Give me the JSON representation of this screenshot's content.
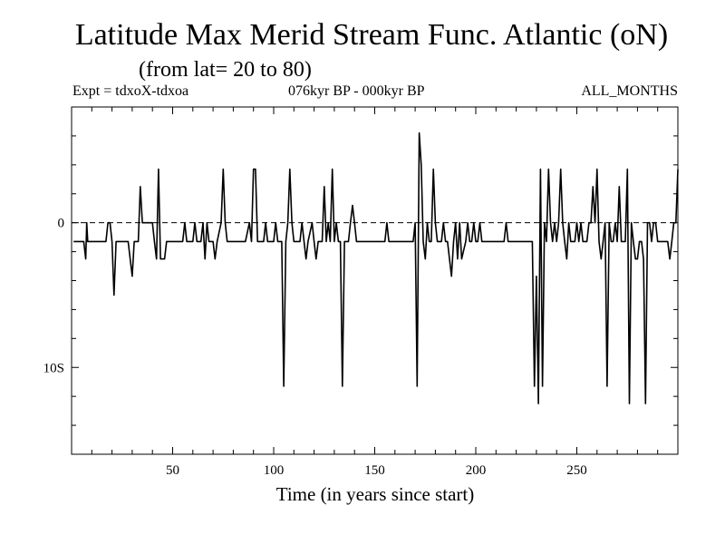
{
  "header": {
    "title": "Latitude Max Merid Stream Func. Atlantic (oN)",
    "subtitle": "(from lat= 20 to 80)",
    "expt": "Expt = tdxoX-tdxoa",
    "period": "076kyr BP - 000kyr BP",
    "months": "ALL_MONTHS"
  },
  "chart_data": {
    "type": "line",
    "title": "Latitude Max Merid Stream Func. Atlantic (oN)",
    "subtitle": "(from lat= 20 to 80)",
    "xlabel": "Time (in years since start)",
    "ylabel": "",
    "xlim": [
      0,
      300
    ],
    "ylim": [
      -16,
      8
    ],
    "x_ticks": [
      50,
      100,
      150,
      200,
      250
    ],
    "x_tick_labels": [
      "50",
      "100",
      "150",
      "200",
      "250"
    ],
    "y_ticks": [
      0,
      -10
    ],
    "y_tick_labels": [
      "0",
      "10S"
    ],
    "reference_line": 0,
    "grid": false,
    "series": [
      {
        "values": [
          [
            1,
            -1.3
          ],
          [
            6,
            -1.3
          ],
          [
            7,
            -2.5
          ],
          [
            7.5,
            0
          ],
          [
            8,
            -1.3
          ],
          [
            17,
            -1.3
          ],
          [
            18,
            0
          ],
          [
            19,
            0
          ],
          [
            20,
            -1.3
          ],
          [
            21,
            -5
          ],
          [
            22,
            -1.3
          ],
          [
            26,
            -1.3
          ],
          [
            28,
            -1.3
          ],
          [
            30,
            -3.7
          ],
          [
            31,
            -1.3
          ],
          [
            33,
            -1.3
          ],
          [
            34,
            2.5
          ],
          [
            35,
            0
          ],
          [
            40,
            0
          ],
          [
            41,
            -1.3
          ],
          [
            42,
            -2.5
          ],
          [
            43,
            3.7
          ],
          [
            44,
            -2.5
          ],
          [
            46,
            -2.5
          ],
          [
            47,
            -1.3
          ],
          [
            55,
            -1.3
          ],
          [
            56,
            0
          ],
          [
            57,
            -1.3
          ],
          [
            60,
            -1.3
          ],
          [
            61,
            0
          ],
          [
            62,
            -1.3
          ],
          [
            64,
            -1.3
          ],
          [
            65,
            0
          ],
          [
            66,
            -2.5
          ],
          [
            67,
            0
          ],
          [
            68,
            -1.3
          ],
          [
            70,
            -1.3
          ],
          [
            71,
            -2.5
          ],
          [
            72,
            -1.3
          ],
          [
            74,
            0
          ],
          [
            75,
            3.7
          ],
          [
            76,
            0
          ],
          [
            77,
            -1.3
          ],
          [
            86,
            -1.3
          ],
          [
            88,
            0
          ],
          [
            89,
            -1.3
          ],
          [
            90,
            3.7
          ],
          [
            91,
            3.7
          ],
          [
            92,
            -1.3
          ],
          [
            95,
            -1.3
          ],
          [
            96,
            0
          ],
          [
            97,
            -1.3
          ],
          [
            100,
            -1.3
          ],
          [
            101,
            0
          ],
          [
            102,
            -1.3
          ],
          [
            104,
            -1.3
          ],
          [
            105,
            -11.3
          ],
          [
            106,
            -1.3
          ],
          [
            107,
            0
          ],
          [
            108,
            3.7
          ],
          [
            109,
            0
          ],
          [
            110,
            -1.3
          ],
          [
            113,
            -1.3
          ],
          [
            114,
            0
          ],
          [
            115,
            -1.3
          ],
          [
            116,
            -2.5
          ],
          [
            117,
            -1.3
          ],
          [
            119,
            0
          ],
          [
            120,
            -1.3
          ],
          [
            121,
            -2.5
          ],
          [
            122,
            -1.3
          ],
          [
            124,
            -1.3
          ],
          [
            125,
            2.5
          ],
          [
            126,
            -1.3
          ],
          [
            127,
            0
          ],
          [
            128,
            -1.3
          ],
          [
            129,
            3.7
          ],
          [
            130,
            -1.3
          ],
          [
            131,
            0
          ],
          [
            132,
            -1.3
          ],
          [
            133,
            -1.3
          ],
          [
            134,
            -11.3
          ],
          [
            135,
            -1.3
          ],
          [
            137,
            -1.3
          ],
          [
            138,
            0
          ],
          [
            139,
            1.2
          ],
          [
            140,
            0
          ],
          [
            141,
            -1.3
          ],
          [
            150,
            -1.3
          ],
          [
            154,
            -1.3
          ],
          [
            155,
            -1.3
          ],
          [
            156,
            0
          ],
          [
            157,
            -1.3
          ],
          [
            158,
            -1.3
          ],
          [
            169,
            -1.3
          ],
          [
            170,
            0
          ],
          [
            171,
            -11.3
          ],
          [
            172,
            6.2
          ],
          [
            173,
            4
          ],
          [
            174,
            -1.3
          ],
          [
            175,
            -2.5
          ],
          [
            176,
            0
          ],
          [
            177,
            -1.3
          ],
          [
            178,
            -1.3
          ],
          [
            179,
            3.7
          ],
          [
            180,
            0
          ],
          [
            181,
            -1.3
          ],
          [
            183,
            -1.3
          ],
          [
            184,
            0
          ],
          [
            185,
            -1.3
          ],
          [
            186,
            -1.3
          ],
          [
            187,
            -2.5
          ],
          [
            188,
            -3.7
          ],
          [
            189,
            -1.3
          ],
          [
            190,
            0
          ],
          [
            191,
            -2.5
          ],
          [
            192,
            0
          ],
          [
            193,
            -2.5
          ],
          [
            195,
            -1.3
          ],
          [
            196,
            0
          ],
          [
            197,
            -1.3
          ],
          [
            198,
            -1.3
          ],
          [
            199,
            0
          ],
          [
            200,
            -1.3
          ],
          [
            201,
            -1.3
          ],
          [
            202,
            0
          ],
          [
            203,
            -1.3
          ],
          [
            206,
            -1.3
          ],
          [
            213,
            -1.3
          ],
          [
            214,
            -1.3
          ],
          [
            215,
            0
          ],
          [
            216,
            -1.3
          ],
          [
            228,
            -1.3
          ],
          [
            229,
            -11.3
          ],
          [
            230,
            -3.7
          ],
          [
            231,
            -12.5
          ],
          [
            232,
            3.7
          ],
          [
            233,
            -11.3
          ],
          [
            234,
            0
          ],
          [
            235,
            -1.3
          ],
          [
            236,
            3.7
          ],
          [
            237,
            0
          ],
          [
            238,
            -1.3
          ],
          [
            239,
            0
          ],
          [
            240,
            -1.3
          ],
          [
            241,
            0
          ],
          [
            242,
            3.7
          ],
          [
            243,
            0
          ],
          [
            244,
            -1.3
          ],
          [
            245,
            -2.5
          ],
          [
            246,
            0
          ],
          [
            247,
            -1.3
          ],
          [
            249,
            -1.3
          ],
          [
            250,
            0
          ],
          [
            251,
            -1.3
          ],
          [
            252,
            0
          ],
          [
            253,
            -1.3
          ],
          [
            254,
            -1.3
          ],
          [
            255,
            -1.3
          ],
          [
            256,
            0
          ],
          [
            257,
            0
          ],
          [
            258,
            2.5
          ],
          [
            259,
            0
          ],
          [
            260,
            3.7
          ],
          [
            261,
            -1.3
          ],
          [
            262,
            -2.5
          ],
          [
            263,
            -1.3
          ],
          [
            264,
            0
          ],
          [
            265,
            -11.3
          ],
          [
            266,
            0
          ],
          [
            267,
            -1.3
          ],
          [
            268,
            -1.3
          ],
          [
            269,
            0
          ],
          [
            270,
            -1.3
          ],
          [
            271,
            2.5
          ],
          [
            272,
            -1.3
          ],
          [
            274,
            -1.3
          ],
          [
            275,
            3.7
          ],
          [
            276,
            -12.5
          ],
          [
            277,
            0
          ],
          [
            278,
            -1.3
          ],
          [
            279,
            -2.5
          ],
          [
            280,
            -2.5
          ],
          [
            281,
            -1.3
          ],
          [
            282,
            -1.3
          ],
          [
            283,
            -2.5
          ],
          [
            284,
            -12.5
          ],
          [
            285,
            0
          ],
          [
            286,
            0
          ],
          [
            287,
            -1.3
          ],
          [
            288,
            0
          ],
          [
            289,
            0
          ],
          [
            290,
            -1.3
          ],
          [
            294,
            -1.3
          ],
          [
            295,
            -1.3
          ],
          [
            296,
            -2.5
          ],
          [
            297,
            -1.3
          ],
          [
            298,
            0
          ],
          [
            299,
            0
          ],
          [
            300,
            3.7
          ]
        ]
      }
    ]
  }
}
